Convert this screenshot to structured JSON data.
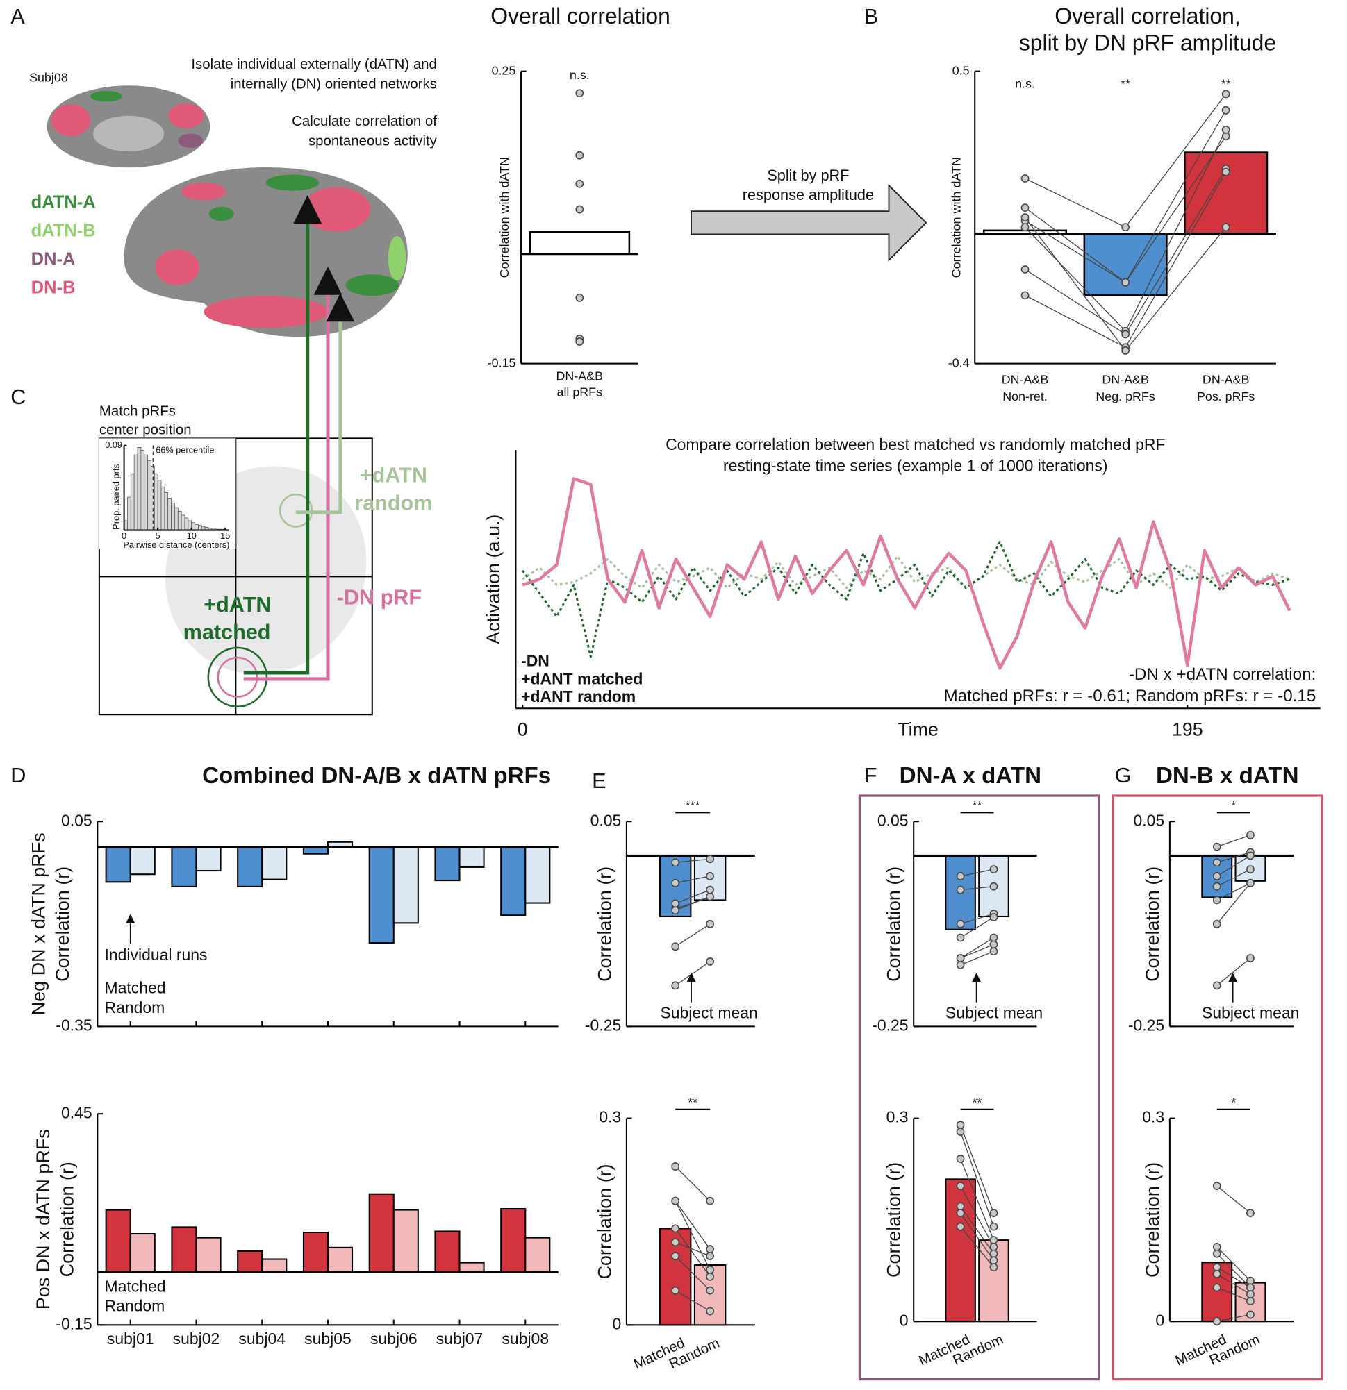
{
  "labels": {
    "panels": [
      "A",
      "B",
      "C",
      "D",
      "E",
      "F",
      "G"
    ],
    "subject": "Subj08",
    "step1": [
      "Isolate individual externally (dATN) and",
      "internally (DN) oriented networks"
    ],
    "step2": [
      "Calculate correlation of",
      "spontaneous activity"
    ],
    "networks": [
      "dATN-A",
      "dATN-B",
      "DN-A",
      "DN-B"
    ],
    "split": [
      "Split by pRF",
      "response amplitude"
    ],
    "match": [
      "Match pRFs",
      "center position"
    ],
    "matched_label": [
      "+dATN",
      "matched"
    ],
    "dn_label": "-DN pRF",
    "random_label": [
      "+dATN",
      "random"
    ]
  },
  "chart_data": [
    {
      "type": "bar",
      "title": "Overall correlation",
      "ylabel": "Correlation with dATN",
      "categories": [
        [
          "DN-A&B",
          "all pRFs"
        ]
      ],
      "values": [
        0.03
      ],
      "colors": [
        "#ffffff"
      ],
      "points": [
        [
          0.22,
          0.135,
          0.096,
          0.061,
          -0.06,
          -0.116,
          -0.12
        ]
      ],
      "significance": [
        "n.s."
      ],
      "ylim": [
        -0.15,
        0.25
      ],
      "yticks": [
        -0.15,
        0.25
      ]
    },
    {
      "type": "bar",
      "title": [
        "Overall correlation,",
        "split by DN pRF amplitude"
      ],
      "ylabel": "Correlation with dATN",
      "categories": [
        [
          "DN-A&B",
          "Non-ret."
        ],
        [
          "DN-A&B",
          "Neg. pRFs"
        ],
        [
          "DN-A&B",
          "Pos. pRFs"
        ]
      ],
      "values": [
        0.01,
        -0.19,
        0.25
      ],
      "colors": [
        "#ffffff",
        "#4f8fcf",
        "#d1343c"
      ],
      "points": [
        [
          0.17,
          0.08,
          0.04,
          0.02,
          -0.11,
          -0.19,
          0.05
        ],
        [
          0.02,
          -0.15,
          -0.15,
          -0.3,
          -0.31,
          -0.35,
          -0.36
        ],
        [
          0.43,
          0.38,
          0.3,
          0.32,
          0.2,
          0.19,
          0.02
        ]
      ],
      "significance": [
        "n.s.",
        "**",
        "**"
      ],
      "ylim": [
        -0.4,
        0.5
      ],
      "yticks": [
        -0.4,
        0.5
      ]
    },
    {
      "type": "histogram",
      "ylabel": "Prop. paired prfs",
      "xlabel": "Pairwise distance (centers)",
      "bins": [
        0,
        0.5,
        1,
        1.5,
        2,
        2.5,
        3,
        3.5,
        4,
        4.5,
        5,
        5.5,
        6,
        6.5,
        7,
        7.5,
        8,
        8.5,
        9,
        9.5,
        10,
        10.5,
        11,
        11.5,
        12,
        12.5,
        13,
        13.5,
        14,
        14.5,
        15
      ],
      "counts": [
        0.01,
        0.035,
        0.06,
        0.08,
        0.088,
        0.085,
        0.08,
        0.074,
        0.068,
        0.06,
        0.053,
        0.046,
        0.04,
        0.034,
        0.029,
        0.024,
        0.02,
        0.016,
        0.013,
        0.01,
        0.008,
        0.006,
        0.005,
        0.004,
        0.003,
        0.002,
        0.002,
        0.001,
        0.001,
        0.001
      ],
      "color": "#d9d9d9",
      "ylim": [
        0,
        0.09
      ],
      "yticks": [
        0.09
      ],
      "xlim": [
        0,
        15.5
      ],
      "xticks": [
        0,
        5,
        10,
        15
      ],
      "percentile": 4.3,
      "percentile_label": "66% percentile"
    },
    {
      "type": "line",
      "title": [
        "Compare correlation between best matched vs randomly matched pRF",
        "resting-state time series (example 1 of 1000 iterations)"
      ],
      "ylabel": "Activation (a.u.)",
      "xlabel": "Time",
      "x": [
        0,
        5,
        10,
        15,
        20,
        25,
        30,
        35,
        40,
        45,
        50,
        55,
        60,
        65,
        70,
        75,
        80,
        85,
        90,
        95,
        100,
        105,
        110,
        115,
        120,
        125,
        130,
        135,
        140,
        145,
        150,
        155,
        160,
        165,
        170,
        175,
        180,
        185,
        190,
        195,
        200,
        205,
        210,
        215,
        220,
        225
      ],
      "series": [
        {
          "name": "-DN",
          "color": "#e07aa0",
          "dash": "solid",
          "values": [
            0.3,
            0.5,
            1.0,
            4.0,
            3.8,
            0.5,
            -0.3,
            1.5,
            -0.5,
            1.2,
            0.2,
            -0.8,
            1.0,
            0.5,
            1.8,
            -0.2,
            1.3,
            0.0,
            0.8,
            1.5,
            0.3,
            2.0,
            0.5,
            -0.5,
            0.6,
            1.4,
            0.8,
            -1.0,
            -2.6,
            -1.5,
            0.4,
            1.8,
            -0.3,
            -1.2,
            0.6,
            1.9,
            0.2,
            2.5,
            0.8,
            -2.5,
            1.5,
            0.2,
            0.9,
            0.3,
            0.6,
            -0.6
          ]
        },
        {
          "name": "+dANT matched",
          "color": "#1e6b2a",
          "dash": "dotted",
          "values": [
            0.8,
            0.0,
            -0.8,
            0.3,
            -2.2,
            0.5,
            0.2,
            -0.3,
            0.6,
            -0.2,
            0.9,
            0.1,
            0.8,
            -0.1,
            0.4,
            0.9,
            0.0,
            1.0,
            0.3,
            -0.2,
            1.4,
            0.1,
            0.5,
            1.0,
            -0.1,
            0.8,
            0.2,
            0.6,
            1.8,
            0.4,
            0.7,
            -0.1,
            0.5,
            1.2,
            0.2,
            0.0,
            0.8,
            0.3,
            1.0,
            0.5,
            0.6,
            0.1,
            0.7,
            0.4,
            0.3,
            0.5
          ]
        },
        {
          "name": "+dANT random",
          "color": "#a7c39a",
          "dash": "dotted",
          "values": [
            0.5,
            0.9,
            0.3,
            0.4,
            0.7,
            1.2,
            0.6,
            0.2,
            1.0,
            0.4,
            0.6,
            0.9,
            0.2,
            0.7,
            0.5,
            1.1,
            0.3,
            0.6,
            0.9,
            0.2,
            0.8,
            0.5,
            1.3,
            0.4,
            0.7,
            0.9,
            0.2,
            0.6,
            1.0,
            0.5,
            0.3,
            1.1,
            0.6,
            0.4,
            0.8,
            1.2,
            0.3,
            0.7,
            0.2,
            1.0,
            0.5,
            0.6,
            0.9,
            0.4,
            0.7,
            0.5
          ]
        }
      ],
      "annotation": [
        "-DN x +dATN correlation:",
        "Matched pRFs: r = -0.61; Random pRFs: r = -0.15"
      ],
      "xlim": [
        -2,
        234
      ],
      "xticks": [
        0,
        195
      ],
      "ylim": [
        -4,
        5
      ]
    },
    {
      "type": "grouped_bar",
      "title": "Combined DN-A/B x dATN pRFs",
      "ylabel": [
        "Neg DN x dATN pRFs",
        "Correlation (r)"
      ],
      "annotation": "Individual runs",
      "series": [
        {
          "name": "Matched",
          "color": "#4f8fcf",
          "values": [
            -0.068,
            -0.077,
            -0.077,
            -0.013,
            -0.187,
            -0.065,
            -0.133
          ]
        },
        {
          "name": "Random",
          "color": "#dce9f5",
          "values": [
            -0.053,
            -0.046,
            -0.063,
            0.01,
            -0.148,
            -0.039,
            -0.109
          ]
        }
      ],
      "ylim": [
        -0.35,
        0.05
      ],
      "yticks": [
        -0.35,
        0.05
      ]
    },
    {
      "type": "grouped_bar",
      "ylabel": [
        "Pos DN x dATN pRFs",
        "Correlation (r)"
      ],
      "categories": [
        "subj01",
        "subj02",
        "subj04",
        "subj05",
        "subj06",
        "subj07",
        "subj08"
      ],
      "series": [
        {
          "name": "Matched",
          "color": "#d1343c",
          "values": [
            0.177,
            0.128,
            0.06,
            0.113,
            0.222,
            0.116,
            0.18
          ]
        },
        {
          "name": "Random",
          "color": "#f0b8b8",
          "values": [
            0.109,
            0.098,
            0.037,
            0.07,
            0.177,
            0.027,
            0.098
          ]
        }
      ],
      "ylim": [
        -0.15,
        0.45
      ],
      "yticks": [
        -0.15,
        0.45
      ]
    },
    {
      "type": "paired_bar",
      "ylabel": "Correlation (r)",
      "annotation": "Subject mean",
      "significance": "***",
      "values": [
        -0.089,
        -0.065
      ],
      "colors": [
        "#4f8fcf",
        "#dce9f5"
      ],
      "points": [
        [
          -0.01,
          -0.04,
          -0.078,
          -0.08,
          -0.133,
          -0.19,
          -0.07
        ],
        [
          -0.005,
          -0.03,
          -0.06,
          -0.06,
          -0.1,
          -0.155,
          -0.05
        ]
      ],
      "ylim": [
        -0.25,
        0.05
      ],
      "yticks": [
        -0.25,
        0.05
      ]
    },
    {
      "type": "paired_bar",
      "ylabel": "Correlation (r)",
      "significance": "**",
      "categories": [
        "Matched",
        "Random"
      ],
      "values": [
        0.14,
        0.087
      ],
      "colors": [
        "#d1343c",
        "#f0b8b8"
      ],
      "points": [
        [
          0.23,
          0.18,
          0.18,
          0.14,
          0.12,
          0.1,
          0.05
        ],
        [
          0.18,
          0.11,
          0.08,
          0.07,
          0.1,
          0.05,
          0.02
        ]
      ],
      "ylim": [
        0,
        0.3
      ],
      "yticks": [
        0,
        0.3
      ]
    },
    {
      "type": "paired_bar",
      "title": "DN-A x dATN",
      "title_color": "#8b5a7c",
      "ylabel": "Correlation (r)",
      "annotation": "Subject mean",
      "significance": "**",
      "values": [
        -0.108,
        -0.089
      ],
      "colors": [
        "#4f8fcf",
        "#dce9f5"
      ],
      "points": [
        [
          -0.03,
          -0.05,
          -0.1,
          -0.12,
          -0.15,
          -0.16,
          -0.15
        ],
        [
          -0.02,
          -0.045,
          -0.085,
          -0.09,
          -0.13,
          -0.14,
          -0.12
        ]
      ],
      "ylim": [
        -0.25,
        0.05
      ],
      "yticks": [
        -0.25,
        0.05
      ]
    },
    {
      "type": "paired_bar",
      "ylabel": "Correlation (r)",
      "significance": "**",
      "categories": [
        "Matched",
        "Random"
      ],
      "values": [
        0.21,
        0.12
      ],
      "colors": [
        "#d1343c",
        "#f0b8b8"
      ],
      "points": [
        [
          0.29,
          0.28,
          0.24,
          0.2,
          0.17,
          0.16,
          0.14
        ],
        [
          0.16,
          0.14,
          0.12,
          0.11,
          0.1,
          0.09,
          0.08
        ]
      ],
      "ylim": [
        0,
        0.3
      ],
      "yticks": [
        0,
        0.3
      ]
    },
    {
      "type": "paired_bar",
      "title": "DN-B x dATN",
      "title_color": "#d0536a",
      "ylabel": "Correlation (r)",
      "annotation": "Subject mean",
      "significance": "*",
      "values": [
        -0.061,
        -0.037
      ],
      "colors": [
        "#4f8fcf",
        "#dce9f5"
      ],
      "points": [
        [
          0.013,
          -0.01,
          -0.03,
          -0.045,
          -0.065,
          -0.1,
          -0.19
        ],
        [
          0.03,
          0.005,
          0.0,
          -0.02,
          -0.04,
          -0.04,
          -0.15
        ]
      ],
      "ylim": [
        -0.25,
        0.05
      ],
      "yticks": [
        -0.25,
        0.05
      ]
    },
    {
      "type": "paired_bar",
      "ylabel": "Correlation (r)",
      "significance": "*",
      "categories": [
        "Matched",
        "Random"
      ],
      "values": [
        0.087,
        0.057
      ],
      "colors": [
        "#d1343c",
        "#f0b8b8"
      ],
      "points": [
        [
          0.2,
          0.11,
          0.1,
          0.08,
          0.07,
          0.05,
          0.0
        ],
        [
          0.16,
          0.06,
          0.05,
          0.05,
          0.04,
          0.03,
          0.01
        ]
      ],
      "ylim": [
        0,
        0.3
      ],
      "yticks": [
        0,
        0.3
      ]
    }
  ]
}
